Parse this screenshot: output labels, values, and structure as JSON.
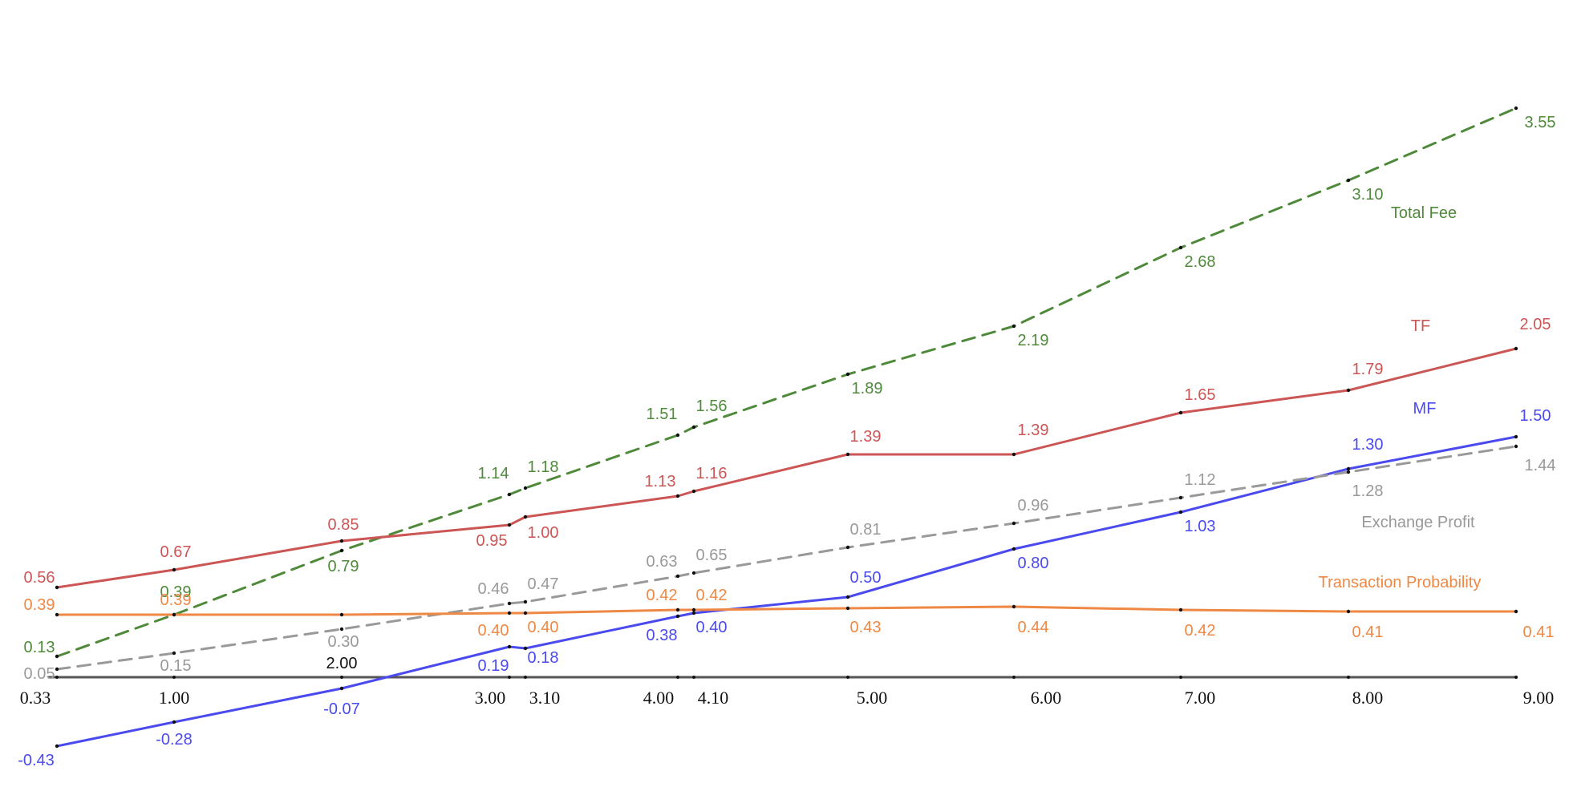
{
  "chart_data": {
    "type": "line",
    "title": "",
    "xlabel": "",
    "ylabel": "",
    "grid": false,
    "x": [
      0.33,
      1.0,
      2.0,
      3.0,
      3.1,
      4.0,
      4.1,
      5.0,
      6.0,
      7.0,
      8.0,
      9.0
    ],
    "x_tick_labels": [
      "0.33",
      "1.00",
      "",
      "3.00",
      "3.10",
      "4.00",
      "4.10",
      "5.00",
      "6.00",
      "7.00",
      "8.00",
      "9.00"
    ],
    "extra_label": "2.00",
    "ylim": [
      -0.5,
      3.7
    ],
    "series": [
      {
        "name": "Total Fee",
        "color": "#4f8a3b",
        "dashed": true,
        "values": [
          0.13,
          0.39,
          0.79,
          1.14,
          1.18,
          1.51,
          1.56,
          1.89,
          2.19,
          2.68,
          3.1,
          3.55
        ],
        "labels": [
          "0.13",
          "0.39",
          "0.79",
          "1.14",
          "1.18",
          "1.51",
          "1.56",
          "1.89",
          "2.19",
          "2.68",
          "3.10",
          "3.55"
        ]
      },
      {
        "name": "TF",
        "color": "#cc5555",
        "dashed": false,
        "values": [
          0.56,
          0.67,
          0.85,
          0.95,
          1.0,
          1.13,
          1.16,
          1.39,
          1.39,
          1.65,
          1.79,
          2.05
        ],
        "labels": [
          "0.56",
          "0.67",
          "0.85",
          "0.95",
          "1.00",
          "1.13",
          "1.16",
          "1.39",
          "1.39",
          "1.65",
          "1.79",
          "2.05"
        ]
      },
      {
        "name": "MF",
        "color": "#4a4aee",
        "dashed": false,
        "values": [
          -0.43,
          -0.28,
          -0.07,
          0.19,
          0.18,
          0.38,
          0.4,
          0.5,
          0.8,
          1.03,
          1.3,
          1.5
        ],
        "labels": [
          "-0.43",
          "-0.28",
          "-0.07",
          "0.19",
          "0.18",
          "0.38",
          "0.40",
          "0.50",
          "0.80",
          "1.03",
          "1.30",
          "1.50"
        ]
      },
      {
        "name": "Exchange Profit",
        "color": "#999999",
        "dashed": true,
        "values": [
          0.05,
          0.15,
          0.3,
          0.46,
          0.47,
          0.63,
          0.65,
          0.81,
          0.96,
          1.12,
          1.28,
          1.44
        ],
        "labels": [
          "0.05",
          "0.15",
          "0.30",
          "0.46",
          "0.47",
          "0.63",
          "0.65",
          "0.81",
          "0.96",
          "1.12",
          "1.28",
          "1.44"
        ]
      },
      {
        "name": "Transaction Probability",
        "color": "#ee8844",
        "dashed": false,
        "values": [
          0.39,
          0.39,
          0.39,
          0.4,
          0.4,
          0.42,
          0.42,
          0.43,
          0.44,
          0.42,
          0.41,
          0.41
        ],
        "labels": [
          "0.39",
          "0.39",
          "",
          "0.40",
          "0.40",
          "0.42",
          "0.42",
          "0.43",
          "0.44",
          "0.42",
          "0.41",
          "0.41"
        ]
      }
    ]
  }
}
